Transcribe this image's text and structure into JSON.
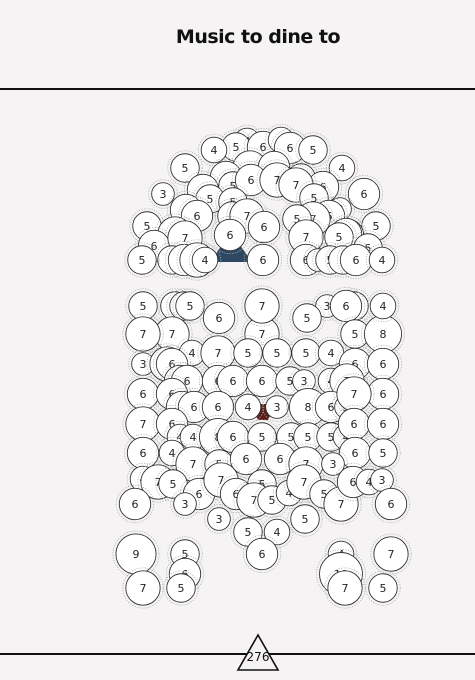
{
  "title": "Music to dine to",
  "page_number": "276",
  "colors": {
    "bubble_fill": "#ffffff",
    "bubble_stroke": "#333333",
    "bubble_halo": "#b0b0b0",
    "label": "#222222",
    "accent_navy": "#2d4860",
    "accent_maroon": "#5a1e1a",
    "rule": "#111111"
  },
  "figure": {
    "bubbles": [
      "4",
      "5",
      "6",
      "4",
      "4",
      "6",
      "5",
      "7",
      "6",
      "5",
      "6",
      "4",
      "5",
      "3",
      "6",
      "5",
      "5",
      "6",
      "7",
      "6",
      "6",
      "7",
      "6",
      "3",
      "5",
      "6",
      "5",
      "6",
      "5",
      "7",
      "7",
      "6",
      "5",
      "5",
      "7",
      "5",
      "6",
      "7",
      "6",
      "6",
      "5",
      "7",
      "5",
      "6",
      "5",
      "6",
      "7",
      "4",
      "5",
      "6",
      "6",
      "3",
      "5",
      "5",
      "6",
      "4",
      "5",
      "5",
      "5",
      "5",
      "6",
      "5",
      "3",
      "5",
      "5",
      "7",
      "7",
      "6",
      "7",
      "5",
      "8",
      "7",
      "4",
      "3",
      "7",
      "4",
      "7",
      "5",
      "5",
      "5",
      "4",
      "6",
      "6",
      "6",
      "6",
      "6",
      "6",
      "6",
      "6",
      "5",
      "3",
      "4",
      "7",
      "6",
      "6",
      "6",
      "6",
      "6",
      "6",
      "4",
      "3",
      "8",
      "6",
      "3",
      "7",
      "7",
      "6",
      "4",
      "4",
      "8",
      "6",
      "5",
      "5",
      "5",
      "5",
      "4",
      "6",
      "6",
      "6",
      "5",
      "6",
      "4",
      "7",
      "5",
      "6",
      "6",
      "7",
      "3",
      "4",
      "7",
      "5",
      "6",
      "7",
      "6",
      "5",
      "7",
      "5",
      "4",
      "7",
      "5",
      "7",
      "6",
      "4",
      "3",
      "6",
      "3",
      "6",
      "3",
      "5",
      "4",
      "5",
      "9",
      "5",
      "6",
      "4",
      "7",
      "6",
      "10",
      "7",
      "5",
      "7",
      "5",
      "4",
      "7",
      "6",
      "6",
      "5",
      "6",
      "6",
      "6",
      "3",
      "2",
      "2",
      "3"
    ]
  }
}
